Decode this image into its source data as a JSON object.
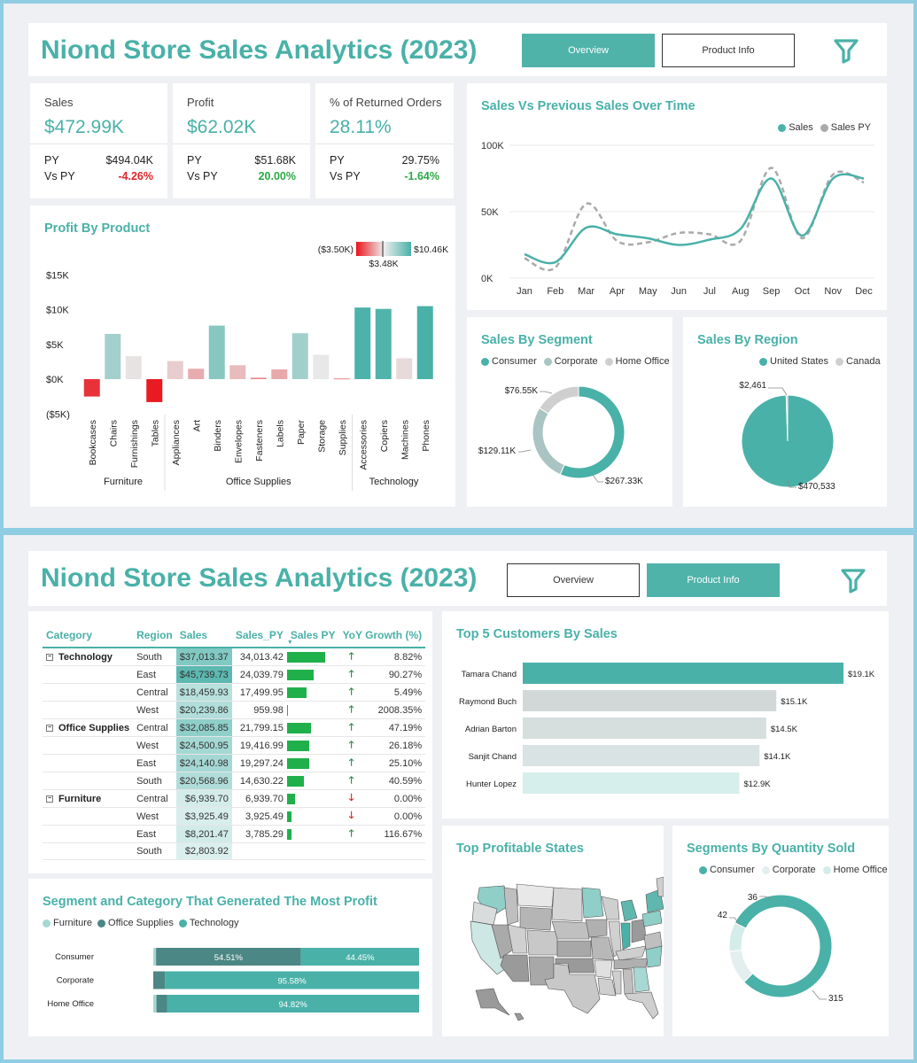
{
  "dashboard1": {
    "title": "Niond Store Sales Analytics (2023)",
    "tabs": [
      {
        "label": "Overview",
        "active": true
      },
      {
        "label": "Product Info",
        "active": false
      }
    ],
    "kpis": [
      {
        "title": "Sales",
        "value": "$472.99K",
        "py_label": "PY",
        "py_value": "$494.04K",
        "vs_label": "Vs PY",
        "vs_value": "-4.26%",
        "vs_sign": "neg"
      },
      {
        "title": "Profit",
        "value": "$62.02K",
        "py_label": "PY",
        "py_value": "$51.68K",
        "vs_label": "Vs PY",
        "vs_value": "20.00%",
        "vs_sign": "pos"
      },
      {
        "title": "% of Returned Orders",
        "value": "28.11%",
        "py_label": "PY",
        "py_value": "29.75%",
        "vs_label": "Vs PY",
        "vs_value": "-1.64%",
        "vs_sign": "pos"
      }
    ],
    "colors": {
      "accent": "#49b1a8",
      "negative": "#e0222a",
      "positive": "#2aa845"
    }
  },
  "chart_data": [
    {
      "id": "sales_vs_py",
      "type": "line",
      "title": "Sales Vs Previous Sales Over Time",
      "categories": [
        "Jan",
        "Feb",
        "Mar",
        "Apr",
        "May",
        "Jun",
        "Jul",
        "Aug",
        "Sep",
        "Oct",
        "Nov",
        "Dec"
      ],
      "series": [
        {
          "name": "Sales",
          "values": [
            18000,
            12000,
            38000,
            33000,
            30000,
            25000,
            29000,
            37000,
            75000,
            32000,
            75000,
            75000
          ],
          "color": "#49b1a8"
        },
        {
          "name": "Sales PY",
          "values": [
            15000,
            8000,
            56000,
            28000,
            27000,
            34000,
            33000,
            28000,
            83000,
            30000,
            78000,
            72000
          ],
          "color": "#aaaaaa"
        }
      ],
      "yticks": [
        "0K",
        "50K",
        "100K"
      ],
      "ylim": [
        0,
        100000
      ],
      "legend": "top-right"
    },
    {
      "id": "profit_by_product",
      "type": "bar",
      "title": "Profit By Product",
      "groups": [
        {
          "name": "Furniture",
          "categories": [
            "Bookcases",
            "Chairs",
            "Furnishings",
            "Tables"
          ],
          "values": [
            -2500,
            6500,
            3300,
            -3300
          ]
        },
        {
          "name": "Office Supplies",
          "categories": [
            "Appliances",
            "Art",
            "Binders",
            "Envelopes",
            "Fasteners",
            "Labels",
            "Paper",
            "Storage",
            "Supplies"
          ],
          "values": [
            2600,
            1500,
            7700,
            2000,
            200,
            1400,
            6600,
            3500,
            100
          ]
        },
        {
          "name": "Technology",
          "categories": [
            "Accessories",
            "Copiers",
            "Machines",
            "Phones"
          ],
          "values": [
            10300,
            10100,
            3000,
            10500
          ]
        }
      ],
      "yticks": [
        "($5K)",
        "$0K",
        "$5K",
        "$10K",
        "$15K"
      ],
      "ylim": [
        -5000,
        15000
      ],
      "color_scale": {
        "min_label": "($3.50K)",
        "mid_label": "$3.48K",
        "max_label": "$10.46K",
        "min": -3500,
        "mid": 3480,
        "max": 10460,
        "min_color": "#e8141c",
        "mid_color": "#e8e8e8",
        "max_color": "#49b1a8"
      }
    },
    {
      "id": "sales_by_segment",
      "type": "pie",
      "title": "Sales By Segment",
      "labels": [
        "Consumer",
        "Corporate",
        "Home Office"
      ],
      "values": [
        267330,
        129110,
        76550
      ],
      "value_labels": [
        "$267.33K",
        "$129.11K",
        "$76.55K"
      ],
      "colors": [
        "#49b1a8",
        "#a9c4c2",
        "#cfcfcf"
      ],
      "legend": "top"
    },
    {
      "id": "sales_by_region",
      "type": "pie",
      "title": "Sales By Region",
      "labels": [
        "United States",
        "Canada"
      ],
      "values": [
        470533,
        2461
      ],
      "value_labels": [
        "$470,533",
        "$2,461"
      ],
      "colors": [
        "#49b1a8",
        "#cfcfcf"
      ],
      "legend": "top"
    },
    {
      "id": "top5_customers",
      "type": "bar",
      "orientation": "horizontal",
      "title": "Top 5 Customers By Sales",
      "categories": [
        "Tamara Chand",
        "Raymond Buch",
        "Adrian Barton",
        "Sanjit Chand",
        "Hunter Lopez"
      ],
      "values": [
        19100,
        15100,
        14500,
        14100,
        12900
      ],
      "value_labels": [
        "$19.1K",
        "$15.1K",
        "$14.5K",
        "$14.1K",
        "$12.9K"
      ],
      "colors": [
        "#49b1a8",
        "#d2d8d8",
        "#d6dede",
        "#d9e3e3",
        "#d6efec"
      ]
    },
    {
      "id": "segment_category_profit",
      "type": "bar",
      "orientation": "horizontal-stacked-100",
      "title": "Segment and Category That Generated The Most Profit",
      "categories": [
        "Consumer",
        "Corporate",
        "Home Office"
      ],
      "series": [
        {
          "name": "Furniture",
          "values": [
            1.04,
            0.0,
            1.2
          ],
          "labels": [
            "",
            "",
            ""
          ],
          "color": "#a6d8d3"
        },
        {
          "name": "Office Supplies",
          "values": [
            54.51,
            4.42,
            3.98
          ],
          "labels": [
            "54.51%",
            "",
            ""
          ],
          "color": "#4b8784"
        },
        {
          "name": "Technology",
          "values": [
            44.45,
            95.58,
            94.82
          ],
          "labels": [
            "44.45%",
            "95.58%",
            "94.82%"
          ],
          "color": "#49b1a8"
        }
      ],
      "legend": "top-left"
    },
    {
      "id": "segments_by_quantity",
      "type": "pie",
      "title": "Segments By Quantity Sold",
      "labels": [
        "Consumer",
        "Corporate",
        "Home Office"
      ],
      "values": [
        315,
        42,
        36
      ],
      "value_labels": [
        "315",
        "42",
        "36"
      ],
      "colors": [
        "#49b1a8",
        "#e4eeee",
        "#d4ecea"
      ],
      "legend": "top"
    }
  ],
  "dashboard2": {
    "title": "Niond Store Sales Analytics (2023)",
    "tabs": [
      {
        "label": "Overview",
        "active": false
      },
      {
        "label": "Product Info",
        "active": true
      }
    ],
    "map_title": "Top Profitable States",
    "matrix": {
      "headers": [
        "Category",
        "Region",
        "Sales",
        "Sales_PY",
        "Sales PY",
        "YoY Growth (%)"
      ],
      "sort_indicator": "▼",
      "rows": [
        {
          "category": "Technology",
          "region": "South",
          "sales": "$37,013.37",
          "sales_py": "34,013.42",
          "bar": 0.74,
          "arrow": "up",
          "yoy": "8.82%",
          "shade": 0.68
        },
        {
          "category": "",
          "region": "East",
          "sales": "$45,739.73",
          "sales_py": "24,039.79",
          "bar": 0.52,
          "arrow": "up",
          "yoy": "90.27%",
          "shade": 0.95
        },
        {
          "category": "",
          "region": "Central",
          "sales": "$18,459.93",
          "sales_py": "17,499.95",
          "bar": 0.38,
          "arrow": "up",
          "yoy": "5.49%",
          "shade": 0.28
        },
        {
          "category": "",
          "region": "West",
          "sales": "$20,239.86",
          "sales_py": "959.98",
          "bar": 0.02,
          "arrow": "up",
          "yoy": "2008.35%",
          "shade": 0.33
        },
        {
          "category": "Office Supplies",
          "region": "Central",
          "sales": "$32,085.85",
          "sales_py": "21,799.15",
          "bar": 0.47,
          "arrow": "up",
          "yoy": "47.19%",
          "shade": 0.58
        },
        {
          "category": "",
          "region": "West",
          "sales": "$24,500.95",
          "sales_py": "19,416.99",
          "bar": 0.42,
          "arrow": "up",
          "yoy": "26.18%",
          "shade": 0.43
        },
        {
          "category": "",
          "region": "East",
          "sales": "$24,140.98",
          "sales_py": "19,297.24",
          "bar": 0.42,
          "arrow": "up",
          "yoy": "25.10%",
          "shade": 0.42
        },
        {
          "category": "",
          "region": "South",
          "sales": "$20,568.96",
          "sales_py": "14,630.22",
          "bar": 0.32,
          "arrow": "up",
          "yoy": "40.59%",
          "shade": 0.34
        },
        {
          "category": "Furniture",
          "region": "Central",
          "sales": "$6,939.70",
          "sales_py": "6,939.70",
          "bar": 0.15,
          "arrow": "down",
          "yoy": "0.00%",
          "shade": 0.08
        },
        {
          "category": "",
          "region": "West",
          "sales": "$3,925.49",
          "sales_py": "3,925.49",
          "bar": 0.09,
          "arrow": "down",
          "yoy": "0.00%",
          "shade": 0.04
        },
        {
          "category": "",
          "region": "East",
          "sales": "$8,201.47",
          "sales_py": "3,785.29",
          "bar": 0.08,
          "arrow": "up",
          "yoy": "116.67%",
          "shade": 0.1
        },
        {
          "category": "",
          "region": "South",
          "sales": "$2,803.92",
          "sales_py": "",
          "bar": 0,
          "arrow": "",
          "yoy": "",
          "shade": 0.02
        }
      ]
    }
  },
  "icons": {
    "filter": "filter-icon",
    "expand": "expand-minus-icon",
    "up": "up-arrow-icon",
    "down": "down-arrow-icon"
  }
}
